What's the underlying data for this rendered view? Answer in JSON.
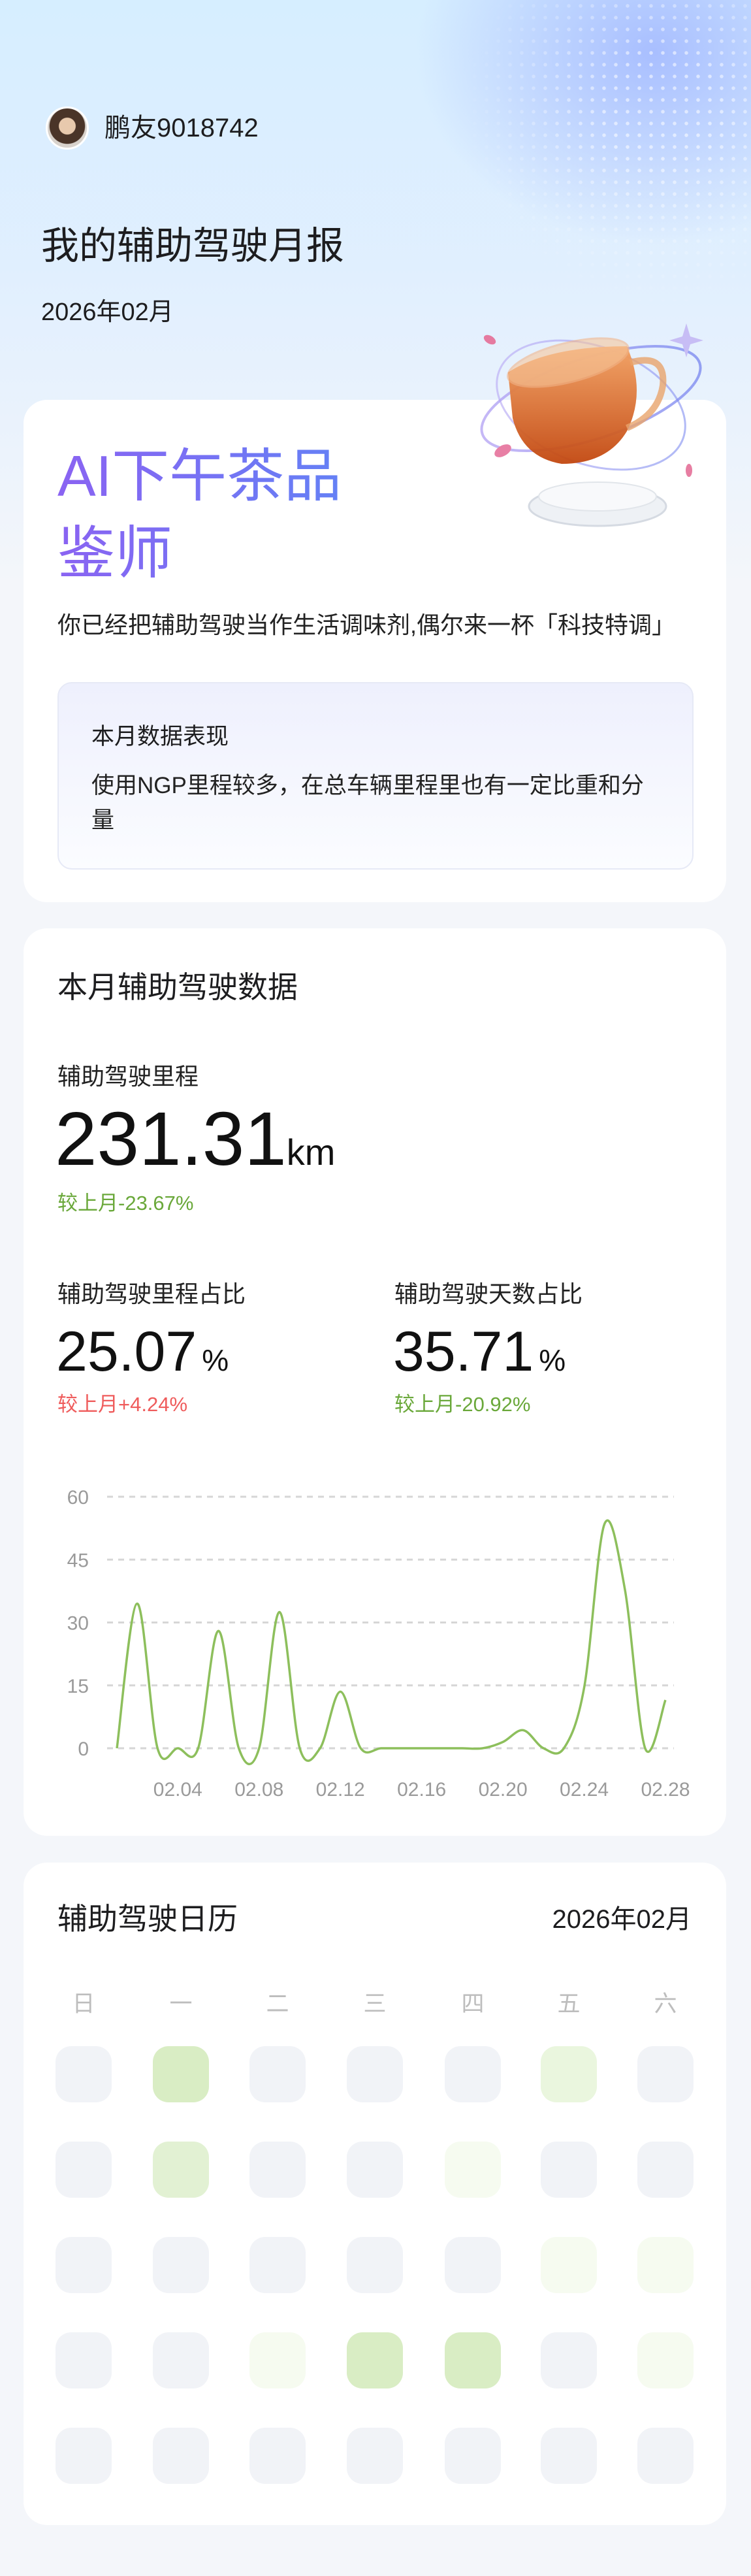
{
  "user": {
    "name": "鹏友9018742"
  },
  "header": {
    "title": "我的辅助驾驶月报",
    "date": "2026年02月"
  },
  "persona": {
    "title": "AI下午茶品鉴师",
    "slogan": "你已经把辅助驾驶当作生活调味剂,偶尔来一杯「科技特调」",
    "performance": {
      "title": "本月数据表现",
      "body": "使用NGP里程较多，在总车辆里程里也有一定比重和分量"
    }
  },
  "stats": {
    "title": "本月辅助驾驶数据",
    "mileage": {
      "label": "辅助驾驶里程",
      "value": "231.31",
      "unit": "km",
      "change": "较上月-23.67%"
    },
    "mileage_ratio": {
      "label": "辅助驾驶里程占比",
      "value": "25.07",
      "unit": "%",
      "change": "较上月+4.24%"
    },
    "days_ratio": {
      "label": "辅助驾驶天数占比",
      "value": "35.71",
      "unit": "%",
      "change": "较上月-20.92%"
    },
    "colors": {
      "down": "#6aa83a",
      "up": "#ef5c5c"
    }
  },
  "chart_data": {
    "type": "line",
    "smooth": true,
    "color": "#8dbf5c",
    "x": [
      "02.01",
      "02.02",
      "02.03",
      "02.04",
      "02.05",
      "02.06",
      "02.07",
      "02.08",
      "02.09",
      "02.10",
      "02.11",
      "02.12",
      "02.13",
      "02.14",
      "02.15",
      "02.16",
      "02.17",
      "02.18",
      "02.19",
      "02.20",
      "02.21",
      "02.22",
      "02.23",
      "02.24",
      "02.25",
      "02.26",
      "02.27",
      "02.28"
    ],
    "values": [
      0,
      34.5,
      0,
      0,
      0,
      28,
      0,
      0,
      32.5,
      0,
      0,
      13.5,
      0,
      0,
      0,
      0,
      0,
      0,
      0,
      1.5,
      4.3,
      0,
      0,
      14.5,
      53.5,
      38,
      0,
      11.5
    ],
    "x_tick_labels": [
      "02.04",
      "02.08",
      "02.12",
      "02.16",
      "02.20",
      "02.24",
      "02.28"
    ],
    "y_ticks": [
      "0",
      "15",
      "30",
      "45",
      "60"
    ],
    "ylim": [
      0,
      60
    ],
    "grid": "dashed-horizontal",
    "legend": "none"
  },
  "calendar": {
    "title": "辅助驾驶日历",
    "month": "2026年02月",
    "weekdays": [
      "日",
      "一",
      "二",
      "三",
      "四",
      "五",
      "六"
    ],
    "level_colors": [
      "#f1f3f7",
      "#f6fbf0",
      "#eaf6de",
      "#e2f1d3",
      "#d9edc4"
    ],
    "weeks": [
      [
        0,
        4,
        0,
        0,
        0,
        2,
        0
      ],
      [
        0,
        3,
        0,
        0,
        1,
        0,
        0
      ],
      [
        0,
        0,
        0,
        0,
        0,
        1,
        1
      ],
      [
        0,
        0,
        1,
        4,
        4,
        0,
        1
      ],
      [
        0,
        0,
        0,
        0,
        0,
        0,
        0
      ]
    ]
  }
}
